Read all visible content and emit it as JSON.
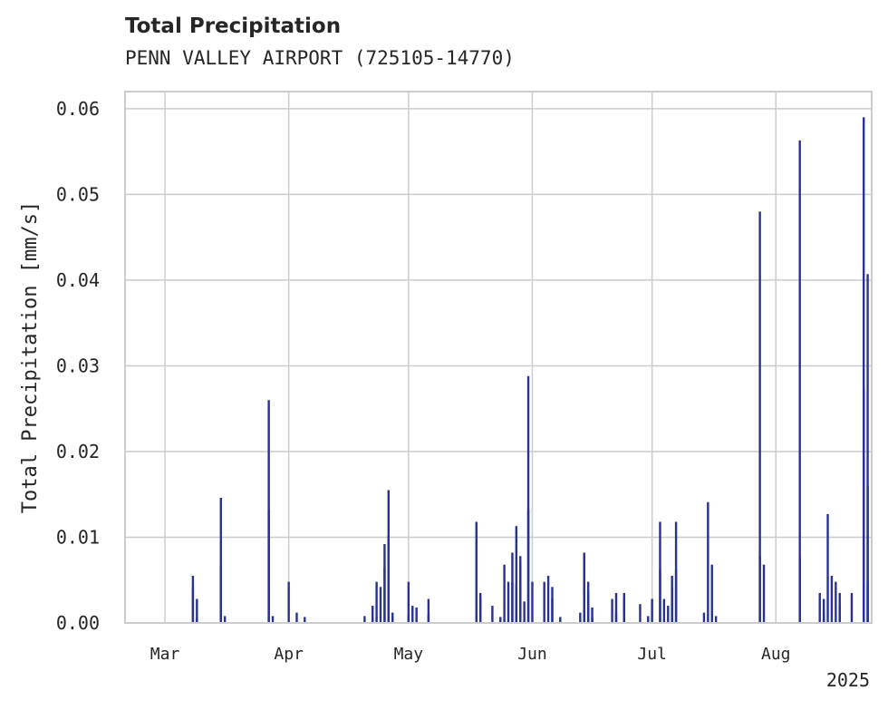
{
  "chart_data": {
    "type": "bar",
    "title": "Total Precipitation",
    "subtitle": "PENN VALLEY AIRPORT (725105-14770)",
    "xlabel": "",
    "ylabel": "Total Precipitation [mm/s]",
    "x_range": [
      "2025-02-19",
      "2025-08-25"
    ],
    "ylim": [
      0,
      0.062
    ],
    "x_ticks": [
      {
        "date": "2025-03-01",
        "label": "Mar"
      },
      {
        "date": "2025-04-01",
        "label": "Apr"
      },
      {
        "date": "2025-05-01",
        "label": "May"
      },
      {
        "date": "2025-06-01",
        "label": "Jun"
      },
      {
        "date": "2025-07-01",
        "label": "Jul"
      },
      {
        "date": "2025-08-01",
        "label": "Aug"
      }
    ],
    "x_offset_label": "2025",
    "y_ticks": [
      {
        "value": 0,
        "label": "0.00"
      },
      {
        "value": 0.01,
        "label": "0.01"
      },
      {
        "value": 0.02,
        "label": "0.02"
      },
      {
        "value": 0.03,
        "label": "0.03"
      },
      {
        "value": 0.04,
        "label": "0.04"
      },
      {
        "value": 0.05,
        "label": "0.05"
      },
      {
        "value": 0.06,
        "label": "0.06"
      }
    ],
    "grid": true,
    "color": "#27338f",
    "series": [
      {
        "points": [
          [
            "2025-03-08",
            0.0042
          ],
          [
            "2025-03-08",
            0.0055
          ],
          [
            "2025-03-09",
            0.0028
          ],
          [
            "2025-03-09",
            0.0005
          ],
          [
            "2025-03-15",
            0.0068
          ],
          [
            "2025-03-15",
            0.0146
          ],
          [
            "2025-03-16",
            0.0008
          ],
          [
            "2025-03-27",
            0.026
          ],
          [
            "2025-03-27",
            0.0132
          ],
          [
            "2025-03-28",
            0.0008
          ],
          [
            "2025-04-01",
            0.0048
          ],
          [
            "2025-04-03",
            0.0012
          ],
          [
            "2025-04-05",
            0.0007
          ],
          [
            "2025-04-20",
            0.0008
          ],
          [
            "2025-04-22",
            0.002
          ],
          [
            "2025-04-23",
            0.0048
          ],
          [
            "2025-04-24",
            0.0042
          ],
          [
            "2025-04-25",
            0.0092
          ],
          [
            "2025-04-25",
            0.0065
          ],
          [
            "2025-04-26",
            0.0155
          ],
          [
            "2025-04-26",
            0.0102
          ],
          [
            "2025-04-27",
            0.0012
          ],
          [
            "2025-05-01",
            0.0048
          ],
          [
            "2025-05-01",
            0.001
          ],
          [
            "2025-05-02",
            0.002
          ],
          [
            "2025-05-03",
            0.0018
          ],
          [
            "2025-05-06",
            0.0028
          ],
          [
            "2025-05-06",
            0.001
          ],
          [
            "2025-05-18",
            0.0118
          ],
          [
            "2025-05-19",
            0.0035
          ],
          [
            "2025-05-19",
            0.0028
          ],
          [
            "2025-05-22",
            0.002
          ],
          [
            "2025-05-24",
            0.0007
          ],
          [
            "2025-05-25",
            0.0068
          ],
          [
            "2025-05-26",
            0.0048
          ],
          [
            "2025-05-27",
            0.0082
          ],
          [
            "2025-05-27",
            0.0048
          ],
          [
            "2025-05-28",
            0.0045
          ],
          [
            "2025-05-28",
            0.0113
          ],
          [
            "2025-05-29",
            0.0078
          ],
          [
            "2025-05-29",
            0.0068
          ],
          [
            "2025-05-30",
            0.0025
          ],
          [
            "2025-05-31",
            0.0288
          ],
          [
            "2025-05-31",
            0.0132
          ],
          [
            "2025-06-01",
            0.0048
          ],
          [
            "2025-06-04",
            0.0048
          ],
          [
            "2025-06-05",
            0.0055
          ],
          [
            "2025-06-06",
            0.0042
          ],
          [
            "2025-06-06",
            0.0028
          ],
          [
            "2025-06-08",
            0.0007
          ],
          [
            "2025-06-13",
            0.0012
          ],
          [
            "2025-06-14",
            0.0082
          ],
          [
            "2025-06-14",
            0.0078
          ],
          [
            "2025-06-15",
            0.0048
          ],
          [
            "2025-06-15",
            0.0035
          ],
          [
            "2025-06-16",
            0.0007
          ],
          [
            "2025-06-16",
            0.0018
          ],
          [
            "2025-06-21",
            0.0028
          ],
          [
            "2025-06-22",
            0.0035
          ],
          [
            "2025-06-22",
            0.0012
          ],
          [
            "2025-06-24",
            0.0035
          ],
          [
            "2025-06-24",
            0.0028
          ],
          [
            "2025-06-28",
            0.0022
          ],
          [
            "2025-06-30",
            0.0008
          ],
          [
            "2025-07-01",
            0.0028
          ],
          [
            "2025-07-03",
            0.0118
          ],
          [
            "2025-07-03",
            0.0062
          ],
          [
            "2025-07-04",
            0.0028
          ],
          [
            "2025-07-05",
            0.002
          ],
          [
            "2025-07-06",
            0.0042
          ],
          [
            "2025-07-06",
            0.0055
          ],
          [
            "2025-07-07",
            0.0118
          ],
          [
            "2025-07-07",
            0.0062
          ],
          [
            "2025-07-14",
            0.0012
          ],
          [
            "2025-07-15",
            0.0141
          ],
          [
            "2025-07-16",
            0.0068
          ],
          [
            "2025-07-17",
            0.0008
          ],
          [
            "2025-07-28",
            0.048
          ],
          [
            "2025-07-28",
            0.0078
          ],
          [
            "2025-08-07",
            0.0563
          ],
          [
            "2025-08-07",
            0.0078
          ],
          [
            "2025-07-29",
            0.0068
          ],
          [
            "2025-08-12",
            0.0035
          ],
          [
            "2025-08-13",
            0.0028
          ],
          [
            "2025-08-13",
            0.0012
          ],
          [
            "2025-08-14",
            0.0127
          ],
          [
            "2025-08-15",
            0.0055
          ],
          [
            "2025-08-16",
            0.0048
          ],
          [
            "2025-08-17",
            0.0035
          ],
          [
            "2025-08-17",
            0.0022
          ],
          [
            "2025-08-20",
            0.0035
          ],
          [
            "2025-08-23",
            0.0273
          ],
          [
            "2025-08-23",
            0.059
          ],
          [
            "2025-08-24",
            0.0407
          ],
          [
            "2025-08-24",
            0.016
          ],
          [
            "2025-08-24",
            0.0048
          ]
        ]
      }
    ]
  }
}
